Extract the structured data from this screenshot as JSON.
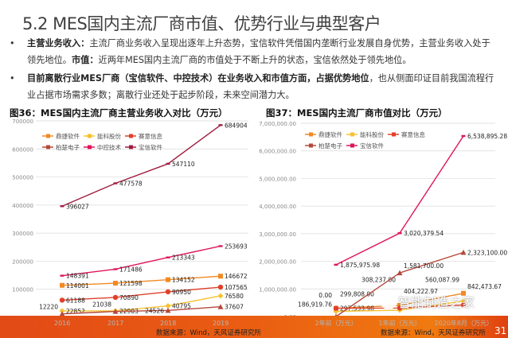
{
  "title": "5.2 MES国内主流厂商市值、优势行业与典型客户",
  "bullets": [
    {
      "bold1": "主营业务收入：",
      "text1": "主流厂商业务收入呈现出逐年上升态势，宝信软件凭借国内垄断行业发展自身优势，主营业务收入处于领先地位。",
      "bold2": "市值：",
      "text2": "近两年MES国内主流厂商的市值处于不断上升的状态，宝信依然处于领先地位。"
    },
    {
      "bold1": "目前离散行业MES厂商（宝信软件、中控技术）在业务收入和市值方面，占据优势地位",
      "text1": "，也从侧面印证目前我国流程行业占据市场需求多数；离散行业还处于起步阶段，未来空间潜力大。"
    }
  ],
  "bullet_glyph": "•",
  "source": "数据来源：Wind，天风证券研究所",
  "page_number": "31",
  "watermark": "智能制造之家",
  "chart_data": [
    {
      "type": "line",
      "title": "图36：MES国内主流厂商主营业务收入对比（万元）",
      "categories": [
        "2016",
        "2017",
        "2018",
        "2019"
      ],
      "ylim": [
        0,
        700000
      ],
      "yticks": [
        "0",
        "100000",
        "200000",
        "300000",
        "400000",
        "500000",
        "600000",
        "700000"
      ],
      "grid": true,
      "legend": "top-left",
      "series": [
        {
          "name": "鼎捷软件",
          "color": "#f08a24",
          "marker": "square",
          "values": [
            114001,
            121598,
            134152,
            146672
          ],
          "labels": [
            "114001",
            "121598",
            "134152",
            "146672"
          ]
        },
        {
          "name": "能科股份",
          "color": "#f7c230",
          "marker": "diamond",
          "values": [
            22852,
            22903,
            40795,
            76580
          ],
          "labels": [
            "22852",
            "22903",
            "40795",
            "76580"
          ]
        },
        {
          "name": "赛意信息",
          "color": "#e0402a",
          "marker": "circle",
          "values": [
            61188,
            70890,
            90950,
            107565
          ],
          "labels": [
            "61188",
            "70890",
            "90950",
            "107565"
          ]
        },
        {
          "name": "柏楚电子",
          "color": "#b5483a",
          "marker": "triangle",
          "values": [
            12220,
            21038,
            24526,
            37607
          ],
          "labels": [
            "12220",
            "21038",
            "24526",
            "37607"
          ]
        },
        {
          "name": "中控技术",
          "color": "#e0145a",
          "marker": "dash",
          "values": [
            148391,
            171486,
            213343,
            253693
          ],
          "labels": [
            "148391",
            "171486",
            "213343",
            "253693"
          ]
        },
        {
          "name": "宝信软件",
          "color": "#a01e40",
          "marker": "dash",
          "values": [
            396027,
            477578,
            547110,
            684904
          ],
          "labels": [
            "396027",
            "477578",
            "547110",
            "684904"
          ]
        }
      ]
    },
    {
      "type": "line",
      "title": "图37：MES国内主流厂商市值对比（万元）",
      "categories": [
        "2年前（万元）",
        "1年前（万元）",
        "2020年8月（万元）"
      ],
      "ylim": [
        0,
        7000000
      ],
      "yticks": [
        "0.00",
        "1,000,000.00",
        "2,000,000.00",
        "3,000,000.00",
        "4,000,000.00",
        "5,000,000.00",
        "6,000,000.00",
        "7,000,000.00"
      ],
      "grid": true,
      "legend": "top-left",
      "series": [
        {
          "name": "鼎捷软件",
          "color": "#f08a24",
          "marker": "square",
          "values": [
            297533.98,
            404222.97,
            842473.67
          ],
          "labels": [
            "297,533.98",
            "404,222.97",
            "842,473.67"
          ]
        },
        {
          "name": "能科股份",
          "color": "#f7c230",
          "marker": "diamond",
          "values": [
            186919.76,
            230000,
            560087.99
          ],
          "labels": [
            "186,919.76",
            null,
            "560,087.99"
          ]
        },
        {
          "name": "赛意信息",
          "color": "#e0402a",
          "marker": "circle",
          "values": [
            299808.0,
            308237.0,
            420000
          ],
          "labels": [
            "299,808.00",
            "308,237.00",
            null
          ]
        },
        {
          "name": "柏楚电子",
          "color": "#b5483a",
          "marker": "triangle",
          "values": [
            0,
            1581700,
            2323100
          ],
          "labels": [
            "0.00",
            "1,581,700.00",
            "2,323,100.00"
          ]
        },
        {
          "name": "宝信软件",
          "color": "#e0145a",
          "marker": "dash",
          "values": [
            1875975.98,
            3020379.54,
            6538895.28
          ],
          "labels": [
            "1,875,975.98",
            "3,020,379.54",
            "6,538,895.28"
          ]
        }
      ]
    }
  ]
}
